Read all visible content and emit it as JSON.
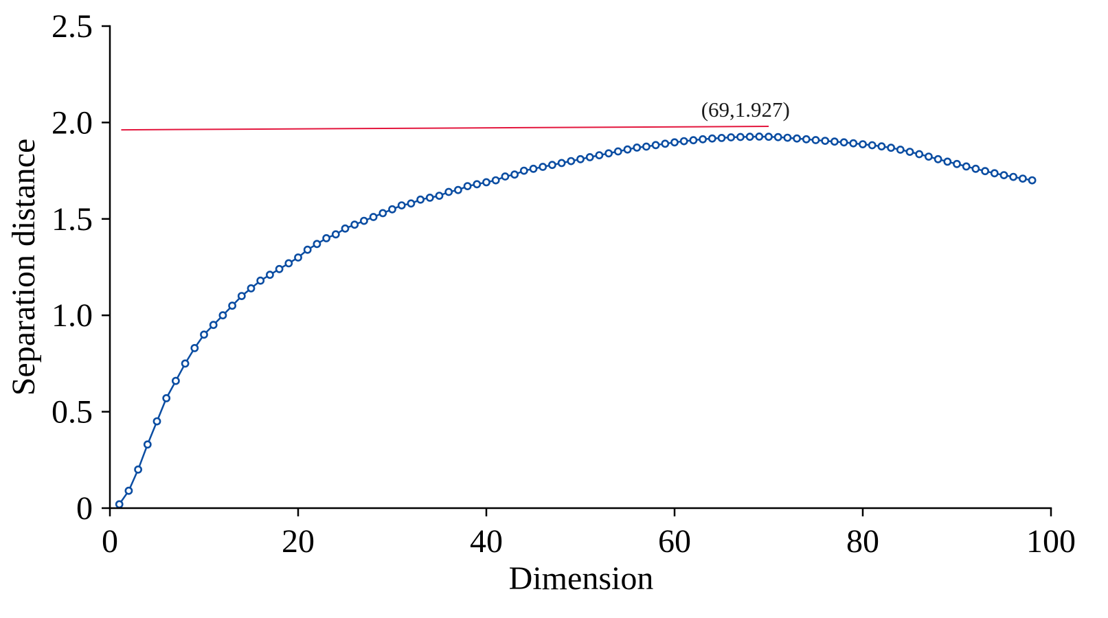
{
  "chart_data": {
    "type": "line",
    "xlabel": "Dimension",
    "ylabel": "Separation distance",
    "xlim": [
      0,
      100
    ],
    "ylim": [
      0,
      2.5
    ],
    "grid": false,
    "x_ticks": {
      "values": [
        0,
        20,
        40,
        60,
        80,
        100
      ],
      "labels": [
        "0",
        "20",
        "40",
        "60",
        "80",
        "100"
      ]
    },
    "y_ticks": {
      "values": [
        0,
        0.5,
        1.0,
        1.5,
        2.0,
        2.5
      ],
      "labels": [
        "0",
        "0.5",
        "1.0",
        "1.5",
        "2.0",
        "2.5"
      ]
    },
    "series": [
      {
        "color": "#0b4da2",
        "x": [
          1,
          2,
          3,
          4,
          5,
          6,
          7,
          8,
          9,
          10,
          11,
          12,
          13,
          14,
          15,
          16,
          17,
          18,
          19,
          20,
          21,
          22,
          23,
          24,
          25,
          26,
          27,
          28,
          29,
          30,
          31,
          32,
          33,
          34,
          35,
          36,
          37,
          38,
          39,
          40,
          41,
          42,
          43,
          44,
          45,
          46,
          47,
          48,
          49,
          50,
          51,
          52,
          53,
          54,
          55,
          56,
          57,
          58,
          59,
          60,
          61,
          62,
          63,
          64,
          65,
          66,
          67,
          68,
          69,
          70,
          71,
          72,
          73,
          74,
          75,
          76,
          77,
          78,
          79,
          80,
          81,
          82,
          83,
          84,
          85,
          86,
          87,
          88,
          89,
          90,
          91,
          92,
          93,
          94,
          95,
          96,
          97,
          98
        ],
        "y": [
          0.02,
          0.09,
          0.2,
          0.33,
          0.45,
          0.57,
          0.66,
          0.75,
          0.83,
          0.9,
          0.95,
          1.0,
          1.05,
          1.1,
          1.14,
          1.18,
          1.21,
          1.24,
          1.27,
          1.3,
          1.34,
          1.37,
          1.4,
          1.42,
          1.45,
          1.47,
          1.49,
          1.51,
          1.53,
          1.55,
          1.57,
          1.58,
          1.6,
          1.61,
          1.62,
          1.64,
          1.65,
          1.67,
          1.68,
          1.69,
          1.7,
          1.72,
          1.73,
          1.75,
          1.76,
          1.77,
          1.78,
          1.79,
          1.8,
          1.81,
          1.82,
          1.83,
          1.84,
          1.85,
          1.86,
          1.87,
          1.875,
          1.883,
          1.89,
          1.897,
          1.903,
          1.908,
          1.913,
          1.917,
          1.92,
          1.923,
          1.925,
          1.926,
          1.927,
          1.926,
          1.924,
          1.921,
          1.917,
          1.913,
          1.909,
          1.905,
          1.901,
          1.897,
          1.892,
          1.887,
          1.882,
          1.876,
          1.869,
          1.859,
          1.848,
          1.836,
          1.823,
          1.81,
          1.797,
          1.785,
          1.772,
          1.76,
          1.748,
          1.737,
          1.727,
          1.718,
          1.709,
          1.7
        ]
      }
    ],
    "reference_lines": [
      {
        "color": "#e3163d",
        "x": [
          1.2,
          70
        ],
        "y": [
          1.962,
          1.98
        ]
      }
    ],
    "annotations": [
      {
        "text": "(69,1.927)",
        "x": 69,
        "y": 1.927
      }
    ]
  }
}
